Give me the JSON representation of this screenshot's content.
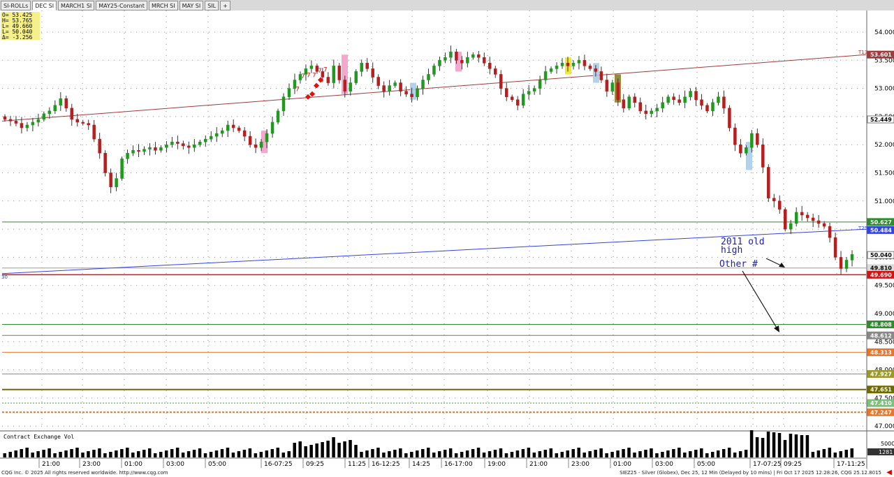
{
  "tabs": [
    {
      "label": "SI-ROLLs",
      "active": false
    },
    {
      "label": "DEC SI",
      "active": true
    },
    {
      "label": "MARCH1 SI",
      "active": false
    },
    {
      "label": "MAY25-Constant",
      "active": false
    },
    {
      "label": "MRCH SI",
      "active": false
    },
    {
      "label": "MAY SI",
      "active": false
    },
    {
      "label": "SIL",
      "active": false
    },
    {
      "label": "+",
      "active": false
    }
  ],
  "ohlc_box": {
    "o": "O= 53.425",
    "h": "H= 53.765",
    "l": "L= 49.660",
    "last": "L= 50.040",
    "delta": "Δ= -3.256"
  },
  "colors": {
    "up": "#1f9a1f",
    "down": "#b51f1f",
    "trend_red": "#a33a3a",
    "trend_blue": "#3344dd",
    "text_blue": "#1a1acd"
  },
  "chart_data": {
    "type": "candlestick",
    "y_ticks": [
      "54.000",
      "53.500",
      "53.000",
      "52.500",
      "52.000",
      "51.500",
      "51.000",
      "50.500",
      "50.000",
      "49.500",
      "49.000",
      "48.500",
      "48.000",
      "47.500",
      "47.000"
    ],
    "x_labels": [
      "21:00",
      "23:00",
      "01:00",
      "03:00",
      "05:00",
      "16-07:25",
      "09:25",
      "11:25",
      "16-12:25",
      "14:25",
      "16-17:00",
      "19:00",
      "21:00",
      "23:00",
      "01:00",
      "03:00",
      "05:00",
      "17-07:25",
      "09:25",
      "17-11:25"
    ],
    "price_labels": [
      "53.601",
      "52.449",
      "50.627",
      "50.484",
      "50.040",
      "49.810",
      "49.690",
      "48.808",
      "48.612",
      "48.313",
      "47.927",
      "47.651",
      "47.410",
      "47.247",
      "1281"
    ],
    "closes": [
      52.45,
      52.42,
      52.38,
      52.3,
      52.35,
      52.4,
      52.45,
      52.55,
      52.6,
      52.7,
      52.82,
      52.65,
      52.45,
      52.4,
      52.38,
      52.35,
      52.1,
      51.85,
      51.5,
      51.25,
      51.4,
      51.75,
      51.85,
      51.9,
      51.88,
      51.92,
      51.95,
      51.9,
      51.95,
      52.0,
      52.05,
      52.02,
      51.98,
      51.95,
      52.0,
      52.05,
      52.1,
      52.15,
      52.2,
      52.25,
      52.35,
      52.3,
      52.25,
      52.15,
      52.0,
      51.95,
      52.05,
      52.2,
      52.4,
      52.6,
      52.85,
      53.0,
      53.15,
      53.25,
      53.35,
      53.4,
      53.3,
      53.2,
      53.1,
      53.4,
      53.15,
      52.95,
      53.1,
      53.3,
      53.45,
      53.35,
      53.2,
      53.05,
      52.95,
      53.05,
      53.1,
      52.95,
      52.9,
      52.85,
      53.0,
      53.15,
      53.25,
      53.4,
      53.5,
      53.55,
      53.65,
      53.5,
      53.45,
      53.55,
      53.6,
      53.55,
      53.45,
      53.35,
      53.25,
      53.0,
      52.85,
      52.8,
      52.7,
      52.9,
      52.95,
      53.0,
      53.15,
      53.3,
      53.35,
      53.4,
      53.45,
      53.4,
      53.45,
      53.5,
      53.4,
      53.35,
      53.3,
      53.15,
      52.95,
      53.1,
      52.8,
      52.65,
      52.85,
      52.75,
      52.6,
      52.55,
      52.6,
      52.65,
      52.75,
      52.85,
      52.8,
      52.75,
      52.85,
      52.95,
      52.8,
      52.7,
      52.6,
      52.75,
      52.85,
      52.65,
      52.3,
      52.0,
      51.85,
      51.95,
      52.2,
      52.0,
      51.6,
      51.05,
      51.0,
      50.85,
      50.5,
      50.6,
      50.8,
      50.75,
      50.7,
      50.65,
      50.6,
      50.55,
      50.35,
      50.0,
      49.8,
      49.95,
      50.05
    ]
  },
  "indicator": {
    "title": "Contract Exchange Vol",
    "tick_label": "5000"
  },
  "annotations": {
    "old_high_line1": "2011 old",
    "old_high_line2": "high",
    "other": "Other #",
    "label_t13": "T13",
    "label_t25": "T25",
    "label_left": "30"
  },
  "footer": {
    "left": "CQG Inc. © 2025 All rights reserved worldwide. http://www.cqg.com",
    "right": "SIEZ25 - Silver (Globex), Dec 25, 12 Min (Delayed by 10 mins) | Fri Oct 17 2025 12:28:26, CQG 25.12.8015"
  }
}
